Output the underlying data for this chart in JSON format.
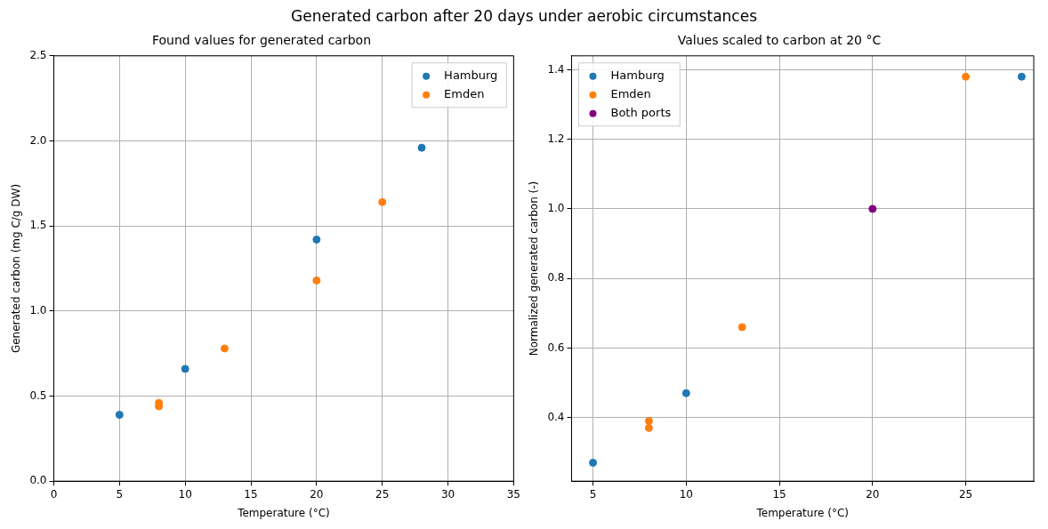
{
  "chart_data": [
    {
      "type": "scatter",
      "title": "Found values for generated carbon",
      "xlabel": "Temperature (°C)",
      "ylabel": "Generated carbon (mg C/g DW)",
      "annotations": [
        "Generated carbon after 20 days under aerobic circumstances"
      ],
      "xlim": [
        0,
        35
      ],
      "xticks": [
        0,
        5,
        10,
        15,
        20,
        25,
        30,
        35
      ],
      "ylim": [
        0,
        2.5
      ],
      "yticks": [
        {
          "value": 0,
          "label": "0.0"
        },
        0.5,
        {
          "value": 1,
          "label": "1.0"
        },
        1.5,
        {
          "value": 2,
          "label": "2.0"
        },
        2.5
      ],
      "grid": true,
      "legend": "top right",
      "marker": "circle",
      "series": [
        {
          "name": "Hamburg",
          "color": "#1f77b4",
          "x": [
            5,
            10,
            20,
            28
          ],
          "values": [
            0.39,
            0.66,
            1.42,
            1.96
          ]
        },
        {
          "name": "Emden",
          "color": "#ff7f0e",
          "x": [
            8,
            8,
            13,
            20,
            25
          ],
          "values": [
            0.46,
            0.44,
            0.78,
            1.18,
            1.64
          ]
        }
      ]
    },
    {
      "type": "scatter",
      "title": "Values scaled to carbon at 20 °C",
      "xlabel": "Temperature (°C)",
      "ylabel": "Normalized generated carbon (-)",
      "xlim": [
        3.85,
        28.65
      ],
      "xticks": [
        5,
        10,
        15,
        20,
        25
      ],
      "ylim": [
        0.217,
        1.44
      ],
      "yticks": [
        0.4,
        0.6,
        0.8,
        {
          "value": 1,
          "label": "1.0"
        },
        1.2,
        1.4
      ],
      "grid": true,
      "legend": "top left",
      "marker": "circle",
      "series": [
        {
          "name": "Hamburg",
          "color": "#1f77b4",
          "x": [
            5,
            10,
            28
          ],
          "values": [
            0.27,
            0.47,
            1.38
          ]
        },
        {
          "name": "Emden",
          "color": "#ff7f0e",
          "x": [
            8,
            8,
            13,
            25
          ],
          "values": [
            0.39,
            0.37,
            0.66,
            1.38
          ]
        },
        {
          "name": "Both ports",
          "color": "#800080",
          "x": [
            20
          ],
          "values": [
            1.0
          ]
        }
      ]
    }
  ]
}
